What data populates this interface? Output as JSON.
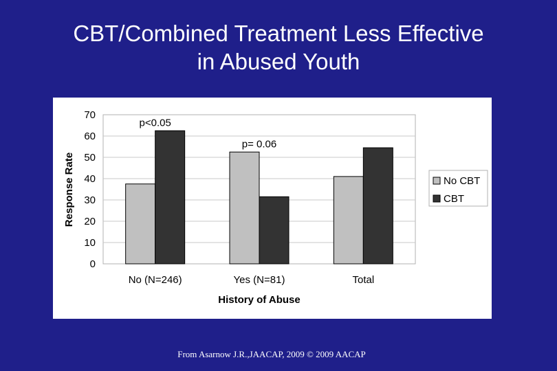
{
  "slide": {
    "title_line1": "CBT/Combined Treatment Less Effective",
    "title_line2": "in Abused Youth",
    "footer": "From Asarnow J.R.,JAACAP, 2009 © 2009 AACAP"
  },
  "chart_data": {
    "type": "bar",
    "title": "",
    "xlabel": "History of Abuse",
    "ylabel": "Response Rate",
    "ylim": [
      0,
      70
    ],
    "yticks": [
      0,
      10,
      20,
      30,
      40,
      50,
      60,
      70
    ],
    "grid": true,
    "legend": "right",
    "categories": [
      "No (N=246)",
      "Yes (N=81)",
      "Total"
    ],
    "series": [
      {
        "name": "No CBT",
        "values": [
          37.5,
          52.5,
          41
        ],
        "color": "#c0c0c0"
      },
      {
        "name": "CBT",
        "values": [
          62.5,
          31.5,
          54.5
        ],
        "color": "#333333"
      }
    ],
    "annotations": [
      {
        "text": "p<0.05",
        "category": 0
      },
      {
        "text": "p= 0.06",
        "category": 1
      }
    ]
  }
}
